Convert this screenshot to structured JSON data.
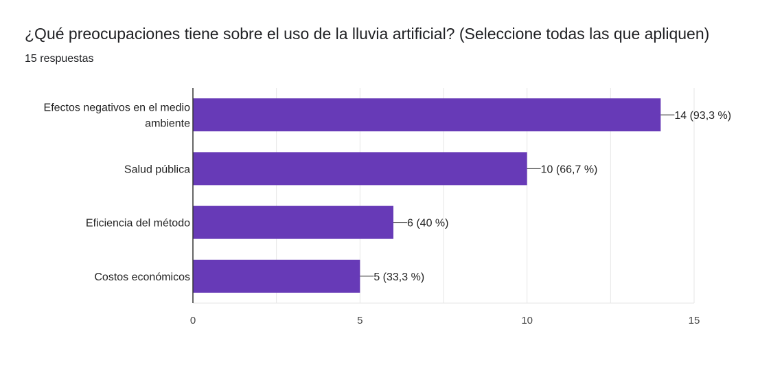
{
  "header": {
    "title": "¿Qué preocupaciones tiene sobre el uso de la lluvia artificial? (Seleccione todas las que apliquen)",
    "subtitle": "15 respuestas"
  },
  "chart_data": {
    "type": "bar",
    "orientation": "horizontal",
    "categories": [
      [
        "Efectos negativos en el medio",
        "ambiente"
      ],
      [
        "Salud pública"
      ],
      [
        "Eficiencia del método"
      ],
      [
        "Costos económicos"
      ]
    ],
    "values": [
      14,
      10,
      6,
      5
    ],
    "value_labels": [
      "14 (93,3 %)",
      "10 (66,7 %)",
      "6 (40 %)",
      "5 (33,3 %)"
    ],
    "xlim": [
      0,
      15
    ],
    "xticks": [
      0,
      5,
      10,
      15
    ],
    "xtick_labels": [
      "0",
      "5",
      "10",
      "15"
    ],
    "grid": true,
    "colors": {
      "bar": "#673ab7",
      "grid": "#e6e6e6",
      "axis": "#333333"
    }
  }
}
